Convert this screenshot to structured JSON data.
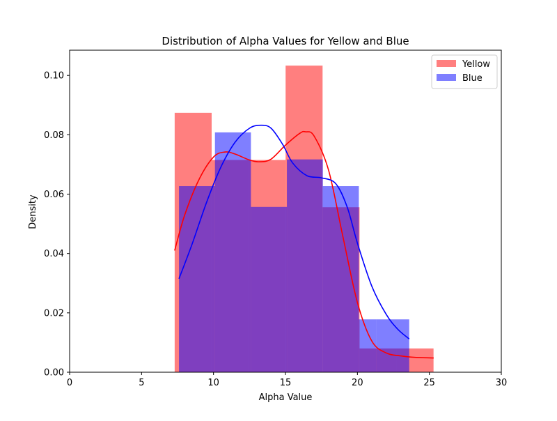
{
  "chart_data": {
    "type": "bar",
    "title": "Distribution of Alpha Values for Yellow and Blue",
    "xlabel": "Alpha Value",
    "ylabel": "Density",
    "xlim": [
      0,
      30
    ],
    "ylim": [
      0,
      0.1085
    ],
    "xticks": [
      0,
      5,
      10,
      15,
      20,
      25,
      30
    ],
    "xtick_labels": [
      "0",
      "5",
      "10",
      "15",
      "20",
      "25",
      "30"
    ],
    "yticks": [
      0.0,
      0.02,
      0.04,
      0.06,
      0.08,
      0.1
    ],
    "ytick_labels": [
      "0.00",
      "0.02",
      "0.04",
      "0.06",
      "0.08",
      "0.10"
    ],
    "grid": false,
    "legend_position": "top-right",
    "series": [
      {
        "name": "Yellow",
        "color": "#ff0000",
        "bin_edges": [
          7.3,
          9.87,
          12.44,
          15.01,
          17.58,
          20.15,
          22.72,
          25.29
        ],
        "densities": [
          0.0874,
          0.0715,
          0.0715,
          0.1033,
          0.0556,
          0.008,
          0.008
        ],
        "kde": {
          "x": [
            7.3,
            8.0,
            9.0,
            10.0,
            10.8,
            11.5,
            12.5,
            13.2,
            14.0,
            15.0,
            16.0,
            16.4,
            17.0,
            18.0,
            19.0,
            20.0,
            21.0,
            22.0,
            23.0,
            24.0,
            25.3
          ],
          "y": [
            0.041,
            0.053,
            0.065,
            0.0725,
            0.0742,
            0.0735,
            0.0715,
            0.0709,
            0.0718,
            0.0765,
            0.0805,
            0.081,
            0.0795,
            0.068,
            0.0455,
            0.0235,
            0.0105,
            0.0065,
            0.0055,
            0.005,
            0.0048
          ]
        }
      },
      {
        "name": "Blue",
        "color": "#0000ff",
        "bin_edges": [
          7.6,
          10.15,
          12.7,
          15.25,
          17.8,
          20.35,
          22.9,
          25.45
        ],
        "densities": [
          0.0627,
          0.0808,
          0.0557,
          0.0717,
          0.0557,
          0.0557,
          0.0178
        ],
        "hist_edges_override": [
          7.6,
          10.1,
          12.6,
          15.1,
          17.6,
          20.1,
          21.3,
          23.6
        ],
        "densities_override": [
          0.0627,
          0.0808,
          0.0557,
          0.0717,
          0.0627,
          0.0178,
          0.0178
        ],
        "kde": {
          "x": [
            7.6,
            8.5,
            9.5,
            10.5,
            11.5,
            12.5,
            13.3,
            14.0,
            14.8,
            15.5,
            16.5,
            17.5,
            18.5,
            19.3,
            20.0,
            21.0,
            22.0,
            22.8,
            23.6
          ],
          "y": [
            0.0315,
            0.043,
            0.057,
            0.069,
            0.0775,
            0.0822,
            0.0832,
            0.0822,
            0.0768,
            0.0705,
            0.0662,
            0.0655,
            0.0635,
            0.0555,
            0.0435,
            0.029,
            0.0195,
            0.0145,
            0.0112
          ]
        }
      }
    ]
  }
}
